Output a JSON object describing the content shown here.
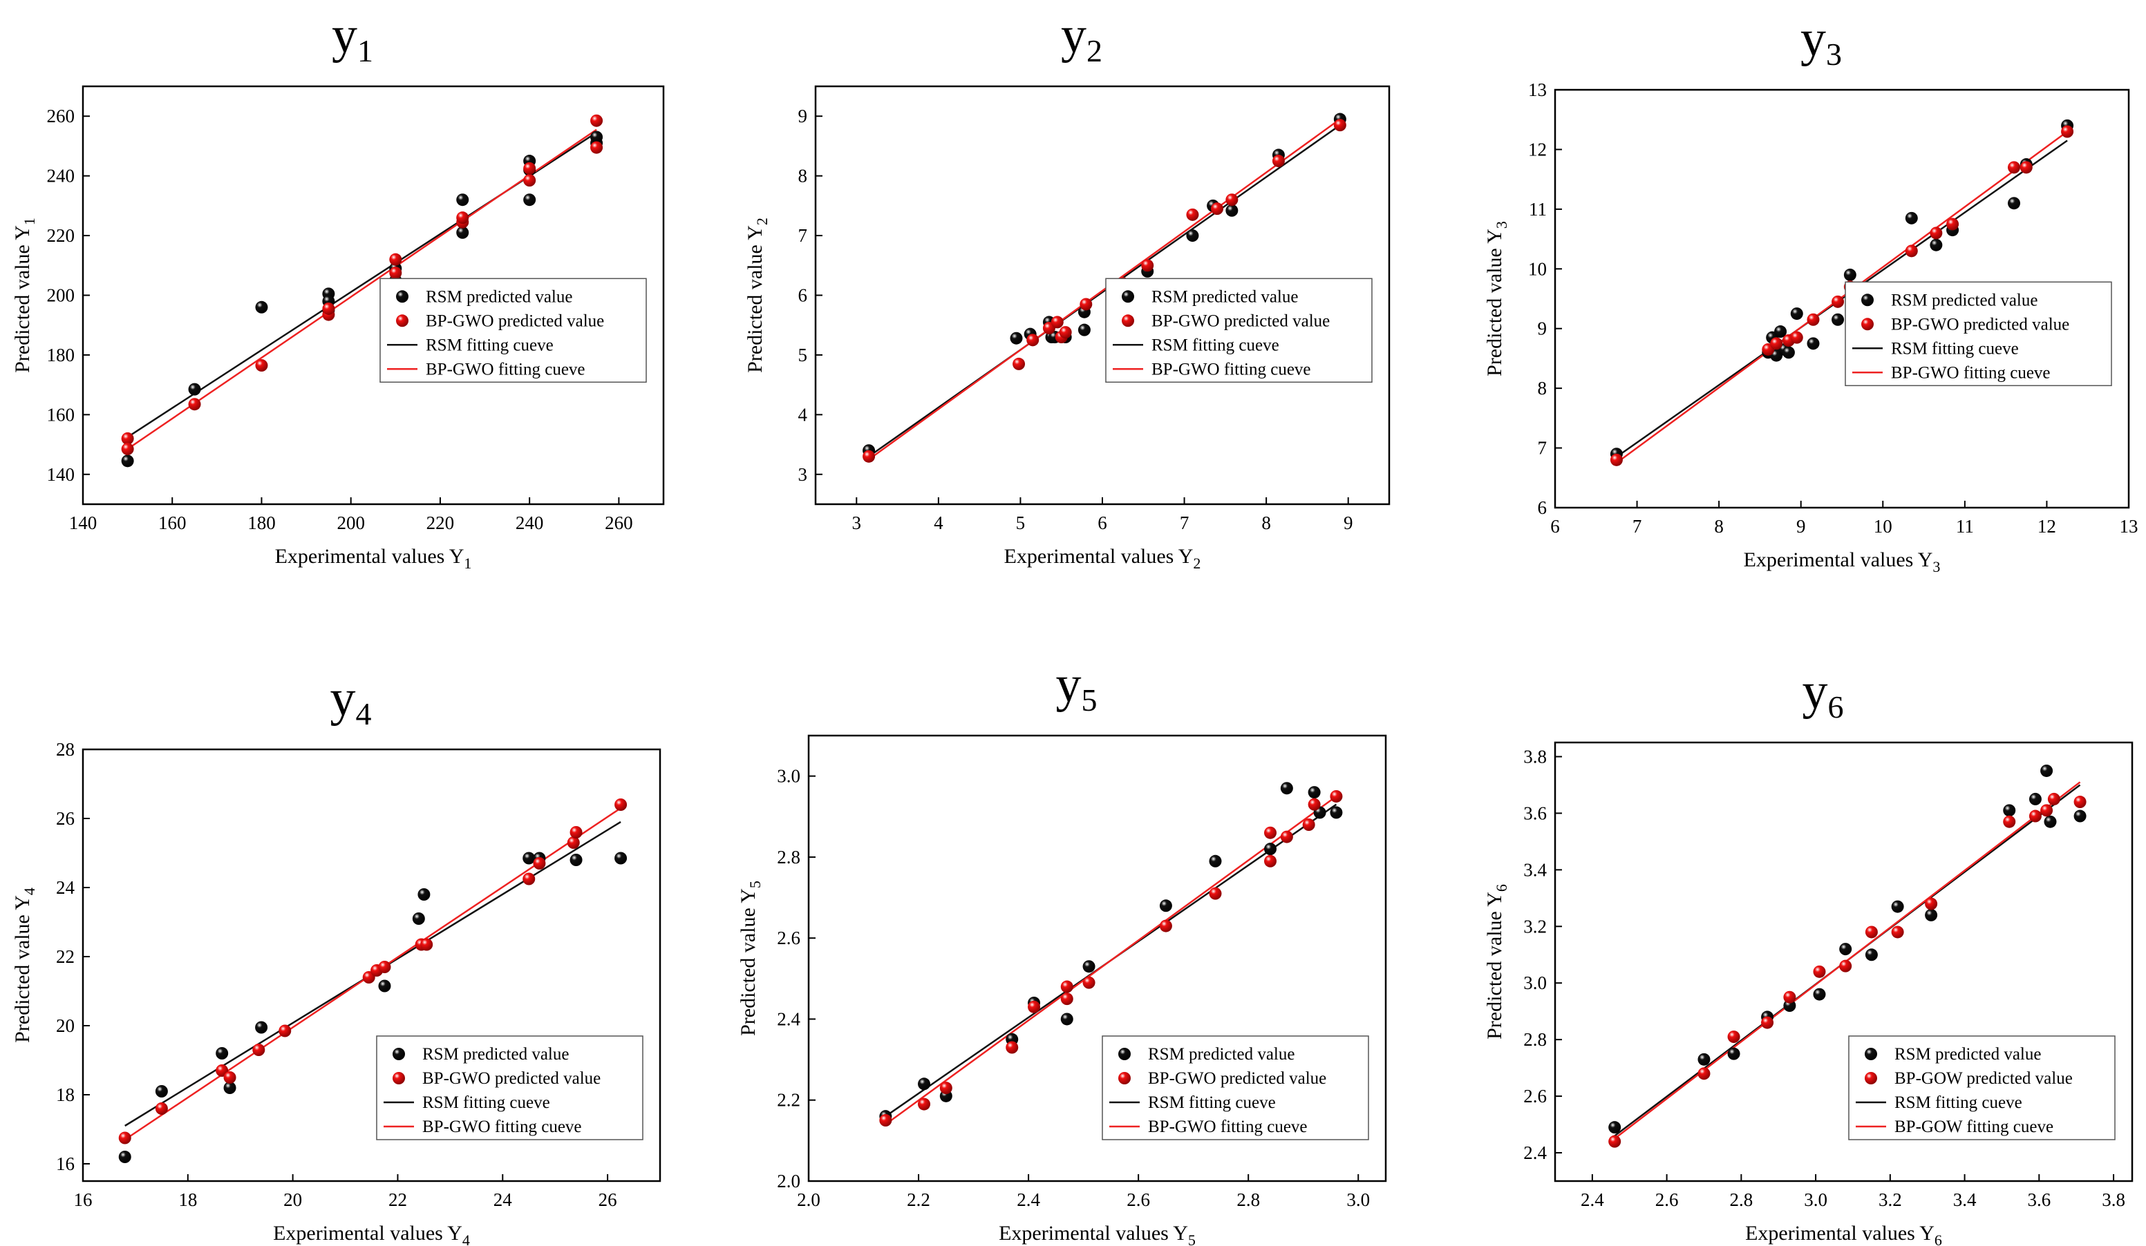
{
  "colors": {
    "rsm_point": "#111111",
    "bp_point": "#ee1111",
    "rsm_line": "#111111",
    "bp_line": "#ee2222",
    "frame": "#000000"
  },
  "chart_data": [
    {
      "type": "scatter",
      "title": "y1",
      "title_letter": "y",
      "title_sub": "1",
      "xlabel": "Experimental values Y1",
      "xlabel_main": "Experimental values Y",
      "xlabel_sub": "1",
      "ylabel": "Predicted value Y1",
      "ylabel_main": "Predicted value Y",
      "ylabel_sub": "1",
      "xlim": [
        140,
        270
      ],
      "ylim": [
        130,
        270
      ],
      "xticks": [
        140,
        160,
        180,
        200,
        220,
        240,
        260
      ],
      "yticks": [
        140,
        160,
        180,
        200,
        220,
        240,
        260
      ],
      "legend": [
        "RSM predicted value",
        "BP-GWO predicted value",
        "RSM fitting cueve",
        "BP-GWO fitting cueve"
      ],
      "legend_position": "center-right",
      "series": [
        {
          "name": "RSM predicted value",
          "x": [
            150,
            165,
            180,
            195,
            195,
            195,
            210,
            210,
            225,
            225,
            240,
            240,
            240,
            255,
            255
          ],
          "y": [
            144.5,
            168.5,
            196,
            200.5,
            198,
            195,
            205,
            209,
            232,
            221,
            245,
            242,
            232,
            251,
            253
          ]
        },
        {
          "name": "BP-GWO predicted value",
          "x": [
            150,
            150,
            165,
            180,
            195,
            195,
            210,
            210,
            225,
            225,
            240,
            240,
            255,
            255
          ],
          "y": [
            152,
            148.5,
            163.5,
            176.5,
            193.5,
            195.5,
            212,
            207.5,
            224.5,
            226,
            238.5,
            242.5,
            258.5,
            249.5
          ]
        },
        {
          "name": "RSM fitting cueve",
          "x": [
            150,
            255
          ],
          "y": [
            152.5,
            254.5
          ]
        },
        {
          "name": "BP-GWO fitting cueve",
          "x": [
            150,
            255
          ],
          "y": [
            148.5,
            255.5
          ]
        }
      ]
    },
    {
      "type": "scatter",
      "title": "y2",
      "title_letter": "y",
      "title_sub": "2",
      "xlabel": "Experimental values Y2",
      "xlabel_main": "Experimental values Y",
      "xlabel_sub": "2",
      "ylabel": "Predicted value Y2",
      "ylabel_main": "Predicted value Y",
      "ylabel_sub": "2",
      "xlim": [
        2.5,
        9.5
      ],
      "ylim": [
        2.5,
        9.5
      ],
      "xticks": [
        3,
        4,
        5,
        6,
        7,
        8,
        9
      ],
      "yticks": [
        3,
        4,
        5,
        6,
        7,
        8,
        9
      ],
      "legend": [
        "RSM predicted value",
        "BP-GWO predicted value",
        "RSM fitting cueve",
        "BP-GWO fitting cueve"
      ],
      "legend_position": "center-right",
      "series": [
        {
          "name": "RSM predicted value",
          "x": [
            3.15,
            4.95,
            5.12,
            5.35,
            5.38,
            5.42,
            5.55,
            5.78,
            5.78,
            6.25,
            6.55,
            7.1,
            7.35,
            7.58,
            8.15,
            8.9
          ],
          "y": [
            3.4,
            5.28,
            5.35,
            5.55,
            5.3,
            5.3,
            5.3,
            5.72,
            5.42,
            6.15,
            6.4,
            7.0,
            7.5,
            7.42,
            8.35,
            8.95
          ]
        },
        {
          "name": "BP-GWO predicted value",
          "x": [
            3.15,
            4.98,
            5.15,
            5.35,
            5.45,
            5.5,
            5.55,
            5.8,
            6.25,
            6.55,
            7.1,
            7.4,
            7.58,
            8.15,
            8.9
          ],
          "y": [
            3.3,
            4.85,
            5.25,
            5.45,
            5.55,
            5.3,
            5.38,
            5.85,
            6.2,
            6.5,
            7.35,
            7.45,
            7.6,
            8.25,
            8.85
          ]
        },
        {
          "name": "RSM fitting cueve",
          "x": [
            3.15,
            8.9
          ],
          "y": [
            3.3,
            8.85
          ]
        },
        {
          "name": "BP-GWO fitting cueve",
          "x": [
            3.15,
            8.9
          ],
          "y": [
            3.25,
            8.95
          ]
        }
      ]
    },
    {
      "type": "scatter",
      "title": "y3",
      "title_letter": "y",
      "title_sub": "3",
      "xlabel": "Experimental values Y3",
      "xlabel_main": "Experimental values Y",
      "xlabel_sub": "3",
      "ylabel": "Predicted value Y3",
      "ylabel_main": "Predicted value Y",
      "ylabel_sub": "3",
      "xlim": [
        6,
        13
      ],
      "ylim": [
        6,
        13
      ],
      "xticks": [
        6,
        7,
        8,
        9,
        10,
        11,
        12,
        13
      ],
      "yticks": [
        6,
        7,
        8,
        9,
        10,
        11,
        12,
        13
      ],
      "legend": [
        "RSM predicted value",
        "BP-GWO predicted value",
        "RSM fitting cueve",
        "BP-GWO fitting cueve"
      ],
      "legend_position": "center-right",
      "series": [
        {
          "name": "RSM predicted value",
          "x": [
            6.75,
            8.6,
            8.65,
            8.7,
            8.75,
            8.8,
            8.85,
            8.95,
            9.15,
            9.45,
            9.6,
            10.35,
            10.65,
            10.85,
            11.6,
            11.75,
            12.25
          ],
          "y": [
            6.9,
            8.6,
            8.85,
            8.55,
            8.95,
            8.65,
            8.6,
            9.25,
            8.75,
            9.15,
            9.9,
            10.85,
            10.4,
            10.65,
            11.1,
            11.75,
            12.4
          ]
        },
        {
          "name": "BP-GWO predicted value",
          "x": [
            6.75,
            8.6,
            8.7,
            8.85,
            8.95,
            9.15,
            9.45,
            9.6,
            10.35,
            10.65,
            10.85,
            11.6,
            11.75,
            12.25
          ],
          "y": [
            6.8,
            8.65,
            8.75,
            8.8,
            8.85,
            9.15,
            9.45,
            9.7,
            10.3,
            10.6,
            10.75,
            11.7,
            11.7,
            12.3
          ]
        },
        {
          "name": "RSM fitting cueve",
          "x": [
            6.75,
            12.25
          ],
          "y": [
            6.85,
            12.15
          ]
        },
        {
          "name": "BP-GWO fitting cueve",
          "x": [
            6.75,
            12.25
          ],
          "y": [
            6.75,
            12.3
          ]
        }
      ]
    },
    {
      "type": "scatter",
      "title": "y4",
      "title_letter": "y",
      "title_sub": "4",
      "xlabel": "Experimental values Y4",
      "xlabel_main": "Experimental values Y",
      "xlabel_sub": "4",
      "ylabel": "Predicted value Y4",
      "ylabel_main": "Predicted value Y",
      "ylabel_sub": "4",
      "xlim": [
        16,
        27
      ],
      "ylim": [
        15.5,
        28
      ],
      "xticks": [
        16,
        18,
        20,
        22,
        24,
        26
      ],
      "yticks": [
        16,
        18,
        20,
        22,
        24,
        26,
        28
      ],
      "legend": [
        "RSM predicted value",
        "BP-GWO predicted value",
        "RSM fitting cueve",
        "BP-GWO fitting cueve"
      ],
      "legend_position": "lower-right",
      "series": [
        {
          "name": "RSM predicted value",
          "x": [
            16.8,
            17.5,
            18.65,
            18.8,
            19.4,
            21.75,
            22.4,
            22.5,
            24.5,
            24.7,
            25.4,
            26.25
          ],
          "y": [
            16.2,
            18.1,
            19.2,
            18.2,
            19.95,
            21.15,
            23.1,
            23.8,
            24.85,
            24.85,
            24.8,
            24.85
          ]
        },
        {
          "name": "BP-GWO predicted value",
          "x": [
            16.8,
            17.5,
            18.65,
            18.8,
            19.35,
            19.85,
            21.45,
            21.6,
            21.75,
            22.45,
            22.55,
            24.5,
            24.7,
            25.35,
            25.4,
            26.25
          ],
          "y": [
            16.75,
            17.6,
            18.7,
            18.5,
            19.3,
            19.85,
            21.4,
            21.6,
            21.7,
            22.35,
            22.35,
            24.25,
            24.7,
            25.3,
            25.6,
            26.4
          ]
        },
        {
          "name": "RSM fitting cueve",
          "x": [
            16.8,
            26.25
          ],
          "y": [
            17.1,
            25.9
          ]
        },
        {
          "name": "BP-GWO fitting cueve",
          "x": [
            16.8,
            26.25
          ],
          "y": [
            16.7,
            26.3
          ]
        }
      ]
    },
    {
      "type": "scatter",
      "title": "y5",
      "title_letter": "y",
      "title_sub": "5",
      "xlabel": "Experimental values Y5",
      "xlabel_main": "Experimental values Y",
      "xlabel_sub": "5",
      "ylabel": "Predicted value Y5",
      "ylabel_main": "Predicted value Y",
      "ylabel_sub": "5",
      "xlim": [
        2.0,
        3.05
      ],
      "ylim": [
        2.0,
        3.1
      ],
      "xticks": [
        "2.0",
        "2.2",
        "2.4",
        "2.6",
        "2.8",
        "3.0"
      ],
      "yticks": [
        "2.0",
        "2.2",
        "2.4",
        "2.6",
        "2.8",
        "3.0"
      ],
      "legend": [
        "RSM predicted value",
        "BP-GWO predicted value",
        "RSM fitting cueve",
        "BP-GWO fitting cueve"
      ],
      "legend_position": "lower-right",
      "series": [
        {
          "name": "RSM predicted value",
          "x": [
            2.14,
            2.21,
            2.25,
            2.37,
            2.41,
            2.47,
            2.51,
            2.65,
            2.74,
            2.84,
            2.87,
            2.92,
            2.93,
            2.96
          ],
          "y": [
            2.16,
            2.24,
            2.21,
            2.35,
            2.44,
            2.4,
            2.53,
            2.68,
            2.79,
            2.82,
            2.97,
            2.96,
            2.91,
            2.91
          ]
        },
        {
          "name": "BP-GWO predicted value",
          "x": [
            2.14,
            2.21,
            2.25,
            2.37,
            2.41,
            2.47,
            2.47,
            2.51,
            2.65,
            2.74,
            2.84,
            2.84,
            2.87,
            2.91,
            2.92,
            2.96
          ],
          "y": [
            2.15,
            2.19,
            2.23,
            2.33,
            2.43,
            2.45,
            2.48,
            2.49,
            2.63,
            2.71,
            2.79,
            2.86,
            2.85,
            2.88,
            2.93,
            2.95
          ]
        },
        {
          "name": "RSM fitting cueve",
          "x": [
            2.14,
            2.96
          ],
          "y": [
            2.16,
            2.93
          ]
        },
        {
          "name": "BP-GWO fitting cueve",
          "x": [
            2.14,
            2.96
          ],
          "y": [
            2.14,
            2.95
          ]
        }
      ]
    },
    {
      "type": "scatter",
      "title": "y6",
      "title_letter": "y",
      "title_sub": "6",
      "xlabel": "Experimental values Y6",
      "xlabel_main": "Experimental values Y",
      "xlabel_sub": "6",
      "ylabel": "Predicted value Y6",
      "ylabel_main": "Predicted value Y",
      "ylabel_sub": "6",
      "xlim": [
        2.3,
        3.85
      ],
      "ylim": [
        2.3,
        3.85
      ],
      "xticks": [
        "2.4",
        "2.6",
        "2.8",
        "3.0",
        "3.2",
        "3.4",
        "3.6",
        "3.8"
      ],
      "yticks": [
        "2.4",
        "2.6",
        "2.8",
        "3.0",
        "3.2",
        "3.4",
        "3.6",
        "3.8"
      ],
      "legend": [
        "RSM predicted value",
        "BP-GOW predicted value",
        "RSM fitting cueve",
        "BP-GOW fitting cueve"
      ],
      "legend_position": "lower-right",
      "series": [
        {
          "name": "RSM predicted value",
          "x": [
            2.46,
            2.7,
            2.78,
            2.87,
            2.93,
            3.01,
            3.08,
            3.15,
            3.22,
            3.31,
            3.52,
            3.59,
            3.62,
            3.63,
            3.71
          ],
          "y": [
            2.49,
            2.73,
            2.75,
            2.88,
            2.92,
            2.96,
            3.12,
            3.1,
            3.27,
            3.24,
            3.61,
            3.65,
            3.75,
            3.57,
            3.59
          ]
        },
        {
          "name": "BP-GOW predicted value",
          "x": [
            2.46,
            2.7,
            2.78,
            2.87,
            2.93,
            3.01,
            3.08,
            3.15,
            3.22,
            3.31,
            3.52,
            3.59,
            3.62,
            3.64,
            3.71
          ],
          "y": [
            2.44,
            2.68,
            2.81,
            2.86,
            2.95,
            3.04,
            3.06,
            3.18,
            3.18,
            3.28,
            3.57,
            3.59,
            3.61,
            3.65,
            3.64
          ]
        },
        {
          "name": "RSM fitting cueve",
          "x": [
            2.46,
            3.71
          ],
          "y": [
            2.46,
            3.7
          ]
        },
        {
          "name": "BP-GOW fitting cueve",
          "x": [
            2.46,
            3.71
          ],
          "y": [
            2.45,
            3.71
          ]
        }
      ]
    }
  ]
}
